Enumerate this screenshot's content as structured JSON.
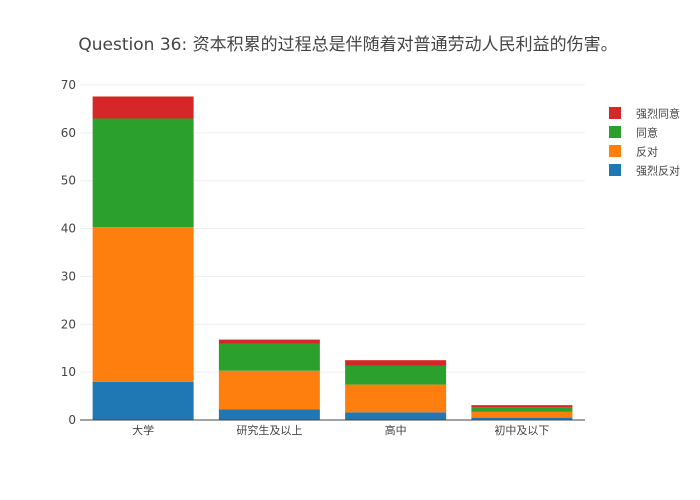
{
  "chart_data": {
    "type": "bar",
    "stacked": true,
    "title": "Question 36: 资本积累的过程总是伴随着对普通劳动人民利益的伤害。",
    "xlabel": "",
    "ylabel": "",
    "categories": [
      "大学",
      "研究生及以上",
      "高中",
      "初中及以下"
    ],
    "ylim": [
      0,
      70
    ],
    "yticks": [
      0,
      10,
      20,
      30,
      40,
      50,
      60,
      70
    ],
    "grid": true,
    "legend_position": "top-right",
    "series": [
      {
        "name": "强烈反对",
        "color": "#1f77b4",
        "values": [
          8,
          2.2,
          1.6,
          0.5
        ]
      },
      {
        "name": "反对",
        "color": "#ff7f0e",
        "values": [
          32.3,
          8.1,
          5.8,
          1.2
        ]
      },
      {
        "name": "同意",
        "color": "#2ca02c",
        "values": [
          22.7,
          5.6,
          3.9,
          1.0
        ]
      },
      {
        "name": "强烈同意",
        "color": "#d62728",
        "values": [
          4.6,
          0.9,
          1.2,
          0.4
        ]
      }
    ]
  }
}
